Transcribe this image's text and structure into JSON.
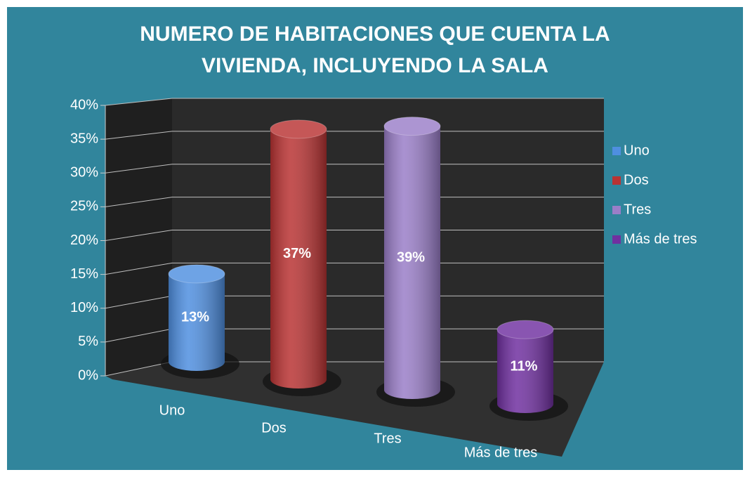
{
  "chart_data": {
    "type": "bar3d",
    "title": "NUMERO DE HABITACIONES QUE CUENTA LA VIVIENDA, INCLUYENDO LA SALA",
    "categories": [
      "Uno",
      "Dos",
      "Tres",
      "Más de tres"
    ],
    "values": [
      13,
      37,
      39,
      11
    ],
    "value_labels": [
      "13%",
      "37%",
      "39%",
      "11%"
    ],
    "colors": [
      "#4f8fe0",
      "#b93333",
      "#9a7ec8",
      "#7030a0"
    ],
    "ylim": [
      0,
      40
    ],
    "yticks": [
      {
        "value": 0,
        "label": "0%"
      },
      {
        "value": 5,
        "label": "5%"
      },
      {
        "value": 10,
        "label": "10%"
      },
      {
        "value": 15,
        "label": "15%"
      },
      {
        "value": 20,
        "label": "20%"
      },
      {
        "value": 25,
        "label": "25%"
      },
      {
        "value": 30,
        "label": "30%"
      },
      {
        "value": 35,
        "label": "35%"
      },
      {
        "value": 40,
        "label": "40%"
      }
    ],
    "grid": true,
    "legend": "right"
  }
}
